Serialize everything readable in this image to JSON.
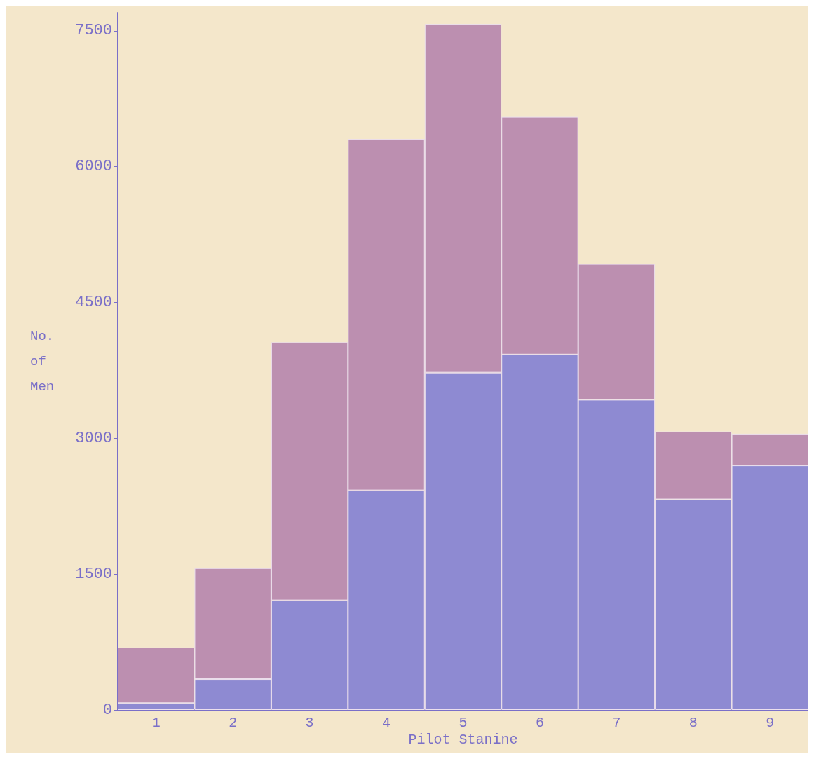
{
  "chart_data": {
    "type": "bar",
    "stacked": true,
    "xlabel": "Pilot Stanine",
    "ylabel": "No. of Men",
    "categories": [
      "1",
      "2",
      "3",
      "4",
      "5",
      "6",
      "7",
      "8",
      "9"
    ],
    "series": [
      {
        "color": "#8e8ad2",
        "values": [
          75,
          340,
          1210,
          2425,
          3725,
          3925,
          3425,
          2325,
          2700
        ]
      },
      {
        "color": "#bc8fb0",
        "values": [
          615,
          1225,
          2850,
          3875,
          3850,
          2625,
          1500,
          750,
          350
        ]
      }
    ],
    "ylim": [
      0,
      7700
    ],
    "yticks": [
      0,
      1500,
      3000,
      4500,
      6000,
      7500
    ],
    "grid": false
  }
}
